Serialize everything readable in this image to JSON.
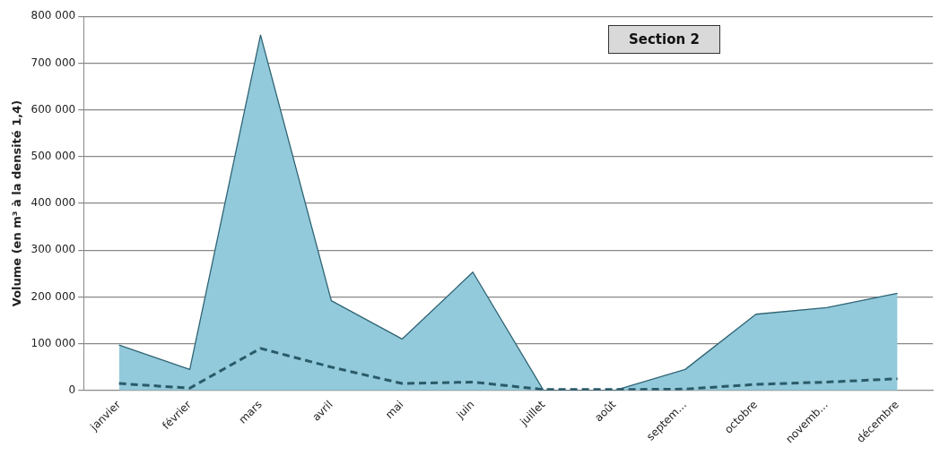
{
  "chart_data": {
    "type": "area",
    "ylabel": "Volume (en m³ à la densité 1,4)",
    "annotations": [
      "Section 2"
    ],
    "categories": [
      "janvier",
      "février",
      "mars",
      "avril",
      "mai",
      "juin",
      "juillet",
      "août",
      "septem…",
      "octobre",
      "novemb…",
      "décembre"
    ],
    "series": [
      {
        "color": "#92cadb",
        "values": [
          97000,
          45000,
          760000,
          192000,
          110000,
          253000,
          0,
          0,
          45000,
          163000,
          177000,
          208000
        ]
      },
      {
        "type": "line",
        "color": "#2a5a68",
        "line_style": "dashed",
        "values": [
          15000,
          5000,
          90000,
          50000,
          15000,
          18000,
          2000,
          2000,
          3000,
          13000,
          18000,
          25000
        ]
      }
    ],
    "ylim": [
      0,
      800000
    ],
    "yticks": [
      {
        "value": 0,
        "label": "0"
      },
      {
        "value": 100000,
        "label": "100 000"
      },
      {
        "value": 200000,
        "label": "200 000"
      },
      {
        "value": 300000,
        "label": "300 000"
      },
      {
        "value": 400000,
        "label": "400 000"
      },
      {
        "value": 500000,
        "label": "500 000"
      },
      {
        "value": 600000,
        "label": "600 000"
      },
      {
        "value": 700000,
        "label": "700 000"
      },
      {
        "value": 800000,
        "label": "800 000"
      }
    ],
    "grid": "y",
    "legend": false,
    "marker": "none"
  }
}
